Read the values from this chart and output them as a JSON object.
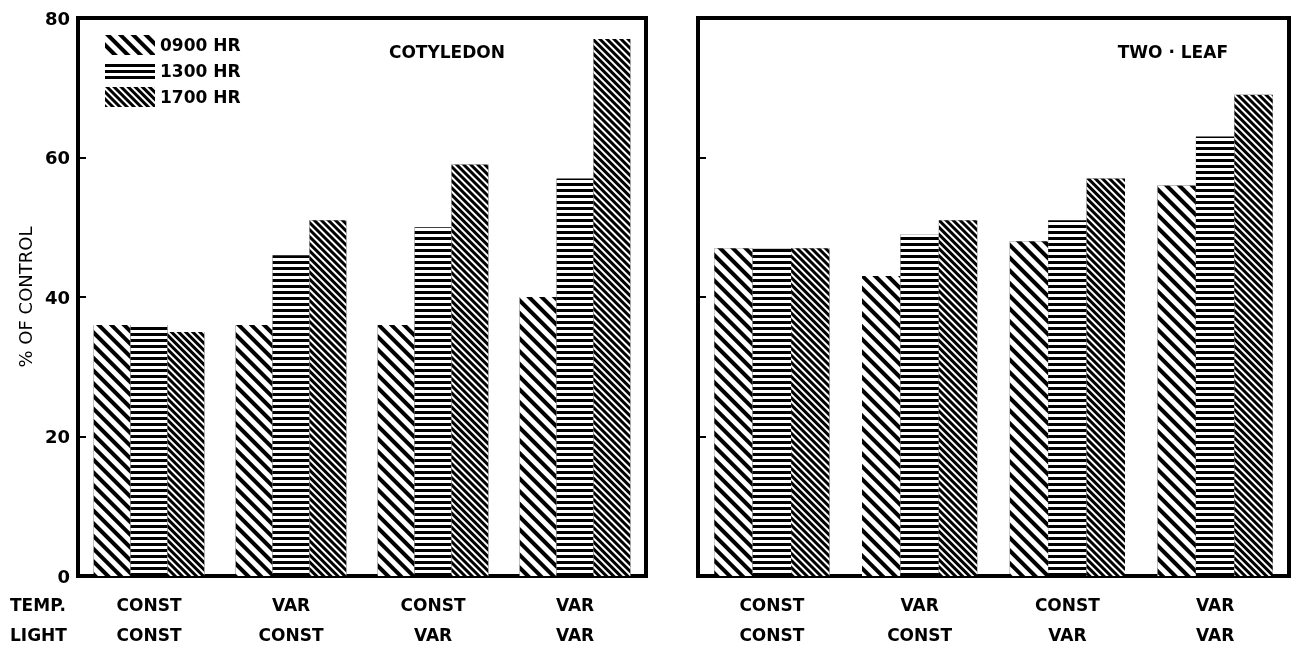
{
  "chart_data": [
    {
      "type": "bar",
      "title": "COTYLEDON",
      "ylabel": "% OF CONTROL",
      "categories": [
        "CONST\nCONST",
        "VAR\nCONST",
        "CONST\nVAR",
        "VAR\nVAR"
      ],
      "series": [
        {
          "name": "0900 HR",
          "color": "#000000",
          "values": [
            36,
            36,
            36,
            40
          ]
        },
        {
          "name": "1300 HR",
          "color": "#000000",
          "values": [
            36,
            46,
            50,
            57
          ]
        },
        {
          "name": "1700 HR",
          "color": "#000000",
          "values": [
            35,
            51,
            59,
            77
          ]
        }
      ],
      "ylim": [
        0,
        80
      ],
      "yticks": [
        0,
        20,
        40,
        60,
        80
      ],
      "grid": false,
      "legend": "top left",
      "annotations": [
        "TEMP.",
        "LIGHT"
      ]
    },
    {
      "type": "bar",
      "title": "TWO · LEAF",
      "categories": [
        "CONST\nCONST",
        "VAR\nCONST",
        "CONST\nVAR",
        "VAR\nVAR"
      ],
      "series": [
        {
          "color": "#000000",
          "values": [
            47,
            43,
            48,
            56
          ]
        },
        {
          "color": "#000000",
          "values": [
            47,
            49,
            51,
            63
          ]
        },
        {
          "color": "#000000",
          "values": [
            47,
            51,
            57,
            69
          ]
        }
      ],
      "ylim": [
        0,
        80
      ],
      "yticks": [
        0,
        20,
        40,
        60,
        80
      ],
      "grid": false,
      "legend": false,
      "tick_labels": "x"
    }
  ]
}
